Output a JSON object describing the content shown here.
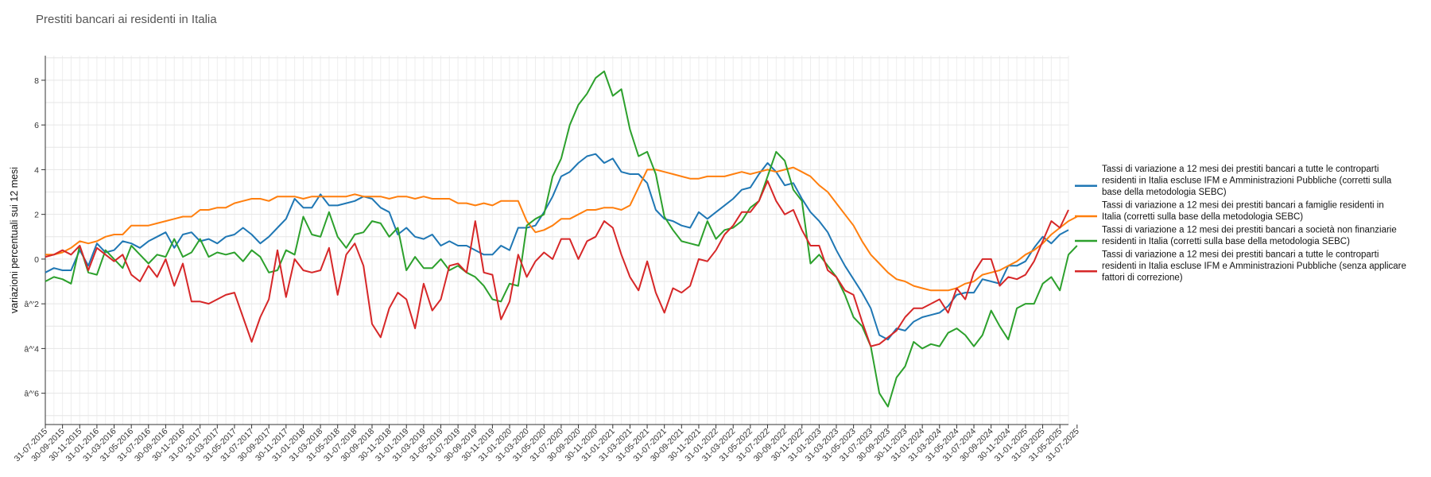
{
  "title": "Prestiti bancari ai residenti in Italia",
  "chart_data": {
    "type": "line",
    "title": "Prestiti bancari ai residenti in Italia",
    "xlabel": "",
    "ylabel": "variazioni percentuali sui 12 mesi",
    "ylim": [
      -7.4,
      9.1
    ],
    "yticks": [
      8,
      6,
      4,
      2,
      0,
      -2,
      -4,
      -6
    ],
    "ytick_labels": [
      "8",
      "6",
      "4",
      "2",
      "0",
      "â^'2",
      "â^'4",
      "â^'6"
    ],
    "grid": true,
    "legend_position": "right",
    "tick_labels": [
      "31-07-2015",
      "30-09-2015",
      "30-11-2015",
      "31-01-2016",
      "31-03-2016",
      "31-05-2016",
      "31-07-2016",
      "30-09-2016",
      "30-11-2016",
      "31-01-2017",
      "31-03-2017",
      "31-05-2017",
      "31-07-2017",
      "30-09-2017",
      "30-11-2017",
      "31-01-2018",
      "31-03-2018",
      "31-05-2018",
      "31-07-2018",
      "30-09-2018",
      "30-11-2018",
      "31-01-2019",
      "31-03-2019",
      "31-05-2019",
      "31-07-2019",
      "30-09-2019",
      "30-11-2019",
      "31-01-2020",
      "31-03-2020",
      "31-05-2020",
      "31-07-2020",
      "30-09-2020",
      "30-11-2020",
      "31-01-2021",
      "31-03-2021",
      "31-05-2021",
      "31-07-2021",
      "30-09-2021",
      "30-11-2021",
      "31-01-2022",
      "31-03-2022",
      "31-05-2022",
      "31-07-2022",
      "30-09-2022",
      "30-11-2022",
      "31-01-2023",
      "31-03-2023",
      "31-05-2023",
      "31-07-2023",
      "30-09-2023",
      "30-11-2023",
      "31-01-2024",
      "31-03-2024",
      "31-05-2024",
      "31-07-2024",
      "30-09-2024",
      "30-11-2024",
      "31-01-2025",
      "31-03-2025",
      "31-05-2025",
      "31-07-2025"
    ],
    "series": [
      {
        "name": "Tassi di variazione a 12 mesi dei prestiti bancari a tutte le controparti residenti in Italia escluse IFM e Amministrazioni Pubbliche (corretti sulla base della metodologia SEBC)",
        "legend_lines": [
          "Tassi di variazione a 12 mesi dei prestiti bancari a tutte le controparti",
          "residenti in Italia escluse IFM e Amministrazioni Pubbliche (corretti sulla",
          "base della metodologia SEBC)"
        ],
        "color": "#1f77b4",
        "values": [
          -0.6,
          -0.4,
          -0.5,
          -0.5,
          0.4,
          -0.3,
          0.7,
          0.3,
          0.4,
          0.8,
          0.7,
          0.5,
          0.8,
          1.0,
          1.2,
          0.5,
          1.1,
          1.2,
          0.8,
          0.9,
          0.7,
          1.0,
          1.1,
          1.4,
          1.1,
          0.7,
          1.0,
          1.4,
          1.8,
          2.7,
          2.3,
          2.3,
          2.9,
          2.4,
          2.4,
          2.5,
          2.6,
          2.8,
          2.7,
          2.3,
          2.1,
          1.1,
          1.4,
          1.0,
          0.9,
          1.1,
          0.6,
          0.8,
          0.6,
          0.6,
          0.4,
          0.2,
          0.2,
          0.6,
          0.4,
          1.4,
          1.4,
          1.5,
          2.1,
          2.8,
          3.7,
          3.9,
          4.3,
          4.6,
          4.7,
          4.3,
          4.5,
          3.9,
          3.8,
          3.8,
          3.4,
          2.2,
          1.8,
          1.7,
          1.5,
          1.4,
          2.1,
          1.8,
          2.1,
          2.4,
          2.7,
          3.1,
          3.2,
          3.8,
          4.3,
          3.9,
          3.3,
          3.4,
          2.7,
          2.1,
          1.7,
          1.2,
          0.4,
          -0.3,
          -0.9,
          -1.5,
          -2.2,
          -3.4,
          -3.6,
          -3.1,
          -3.2,
          -2.8,
          -2.6,
          -2.5,
          -2.4,
          -2.1,
          -1.6,
          -1.5,
          -1.5,
          -0.9,
          -1.0,
          -1.1,
          -0.3,
          -0.3,
          -0.1,
          0.5,
          1.0,
          0.7,
          1.1,
          1.3
        ]
      },
      {
        "name": "Tassi di variazione a 12 mesi dei prestiti bancari a famiglie residenti in Italia (corretti sulla base della metodologia SEBC)",
        "legend_lines": [
          "Tassi di variazione a 12 mesi dei prestiti bancari a famiglie residenti in",
          "Italia (corretti sulla base della metodologia SEBC)"
        ],
        "color": "#ff7f0e",
        "values": [
          0.2,
          0.2,
          0.3,
          0.5,
          0.8,
          0.7,
          0.8,
          1.0,
          1.1,
          1.1,
          1.5,
          1.5,
          1.5,
          1.6,
          1.7,
          1.8,
          1.9,
          1.9,
          2.2,
          2.2,
          2.3,
          2.3,
          2.5,
          2.6,
          2.7,
          2.7,
          2.6,
          2.8,
          2.8,
          2.8,
          2.7,
          2.8,
          2.8,
          2.8,
          2.8,
          2.8,
          2.9,
          2.8,
          2.8,
          2.8,
          2.7,
          2.8,
          2.8,
          2.7,
          2.8,
          2.7,
          2.7,
          2.7,
          2.5,
          2.5,
          2.4,
          2.5,
          2.4,
          2.6,
          2.6,
          2.6,
          1.7,
          1.2,
          1.3,
          1.5,
          1.8,
          1.8,
          2.0,
          2.2,
          2.2,
          2.3,
          2.3,
          2.2,
          2.4,
          3.2,
          4.0,
          4.0,
          3.9,
          3.8,
          3.7,
          3.6,
          3.6,
          3.7,
          3.7,
          3.7,
          3.8,
          3.9,
          3.8,
          3.9,
          4.0,
          3.9,
          4.0,
          4.1,
          3.9,
          3.7,
          3.3,
          3.0,
          2.5,
          2.0,
          1.5,
          0.8,
          0.2,
          -0.2,
          -0.6,
          -0.9,
          -1.0,
          -1.2,
          -1.3,
          -1.4,
          -1.4,
          -1.4,
          -1.3,
          -1.1,
          -1.0,
          -0.7,
          -0.6,
          -0.5,
          -0.3,
          -0.1,
          0.2,
          0.4,
          0.7,
          1.1,
          1.4,
          1.7,
          1.9
        ]
      },
      {
        "name": "Tassi di variazione a 12 mesi dei prestiti bancari a società non finanziarie residenti in Italia (corretti sulla base della metodologia SEBC)",
        "legend_lines": [
          "Tassi di variazione a 12 mesi dei prestiti bancari a società non finanziarie",
          "residenti in Italia (corretti sulla base della metodologia SEBC)"
        ],
        "color": "#2ca02c",
        "values": [
          -1.0,
          -0.8,
          -0.9,
          -1.1,
          0.6,
          -0.6,
          -0.7,
          0.4,
          0.0,
          -0.4,
          0.6,
          0.2,
          -0.2,
          0.2,
          0.1,
          0.9,
          0.1,
          0.3,
          0.9,
          0.1,
          0.3,
          0.2,
          0.3,
          -0.1,
          0.4,
          0.1,
          -0.6,
          -0.5,
          0.4,
          0.2,
          1.9,
          1.1,
          1.0,
          2.1,
          1.0,
          0.5,
          1.1,
          1.2,
          1.7,
          1.6,
          1.0,
          1.4,
          -0.5,
          0.1,
          -0.4,
          -0.4,
          0.0,
          -0.5,
          -0.3,
          -0.6,
          -0.8,
          -1.2,
          -1.8,
          -1.9,
          -1.1,
          -1.2,
          1.5,
          1.8,
          2.0,
          3.7,
          4.5,
          6.0,
          6.9,
          7.4,
          8.1,
          8.4,
          7.3,
          7.6,
          5.8,
          4.6,
          4.8,
          3.8,
          1.9,
          1.3,
          0.8,
          0.7,
          0.6,
          1.7,
          0.9,
          1.3,
          1.4,
          1.7,
          2.3,
          2.6,
          3.7,
          4.8,
          4.4,
          3.1,
          2.6,
          -0.2,
          0.2,
          -0.3,
          -0.8,
          -1.6,
          -2.6,
          -3.0,
          -3.9,
          -6.0,
          -6.6,
          -5.3,
          -4.8,
          -3.7,
          -4.0,
          -3.8,
          -3.9,
          -3.3,
          -3.1,
          -3.4,
          -3.9,
          -3.4,
          -2.3,
          -3.0,
          -3.6,
          -2.2,
          -2.0,
          -2.0,
          -1.1,
          -0.8,
          -1.4,
          0.2,
          0.6
        ]
      },
      {
        "name": "Tassi di variazione a 12 mesi dei prestiti bancari a tutte le controparti residenti in Italia escluse IFM e Amministrazioni Pubbliche (senza applicare fattori di correzione)",
        "legend_lines": [
          "Tassi di variazione a 12 mesi dei prestiti bancari a tutte le controparti",
          "residenti in Italia escluse IFM e Amministrazioni Pubbliche (senza applicare",
          "fattori di correzione)"
        ],
        "color": "#d62728",
        "values": [
          0.1,
          0.2,
          0.4,
          0.2,
          0.6,
          -0.5,
          0.5,
          0.2,
          -0.1,
          0.2,
          -0.7,
          -1.0,
          -0.3,
          -0.8,
          0.0,
          -1.2,
          -0.2,
          -1.9,
          -1.9,
          -2.0,
          -1.8,
          -1.6,
          -1.5,
          -2.6,
          -3.7,
          -2.6,
          -1.8,
          0.4,
          -1.7,
          0.0,
          -0.5,
          -0.6,
          -0.5,
          0.5,
          -1.6,
          0.2,
          0.7,
          -0.3,
          -2.9,
          -3.5,
          -2.2,
          -1.5,
          -1.8,
          -3.1,
          -1.1,
          -2.3,
          -1.8,
          -0.3,
          -0.2,
          -0.6,
          1.7,
          -0.6,
          -0.7,
          -2.7,
          -1.9,
          0.2,
          -0.8,
          -0.1,
          0.3,
          0.0,
          0.9,
          0.9,
          0.0,
          0.8,
          1.0,
          1.7,
          1.4,
          0.2,
          -0.8,
          -1.4,
          -0.1,
          -1.5,
          -2.4,
          -1.3,
          -1.5,
          -1.2,
          0.0,
          -0.1,
          0.4,
          1.1,
          1.5,
          2.1,
          2.1,
          2.6,
          3.5,
          2.6,
          2.0,
          2.2,
          1.3,
          0.6,
          0.6,
          -0.5,
          -0.8,
          -1.4,
          -1.6,
          -2.8,
          -3.9,
          -3.8,
          -3.5,
          -3.2,
          -2.6,
          -2.2,
          -2.2,
          -2.0,
          -1.8,
          -2.4,
          -1.3,
          -1.8,
          -0.6,
          0.0,
          0.0,
          -1.2,
          -0.8,
          -0.9,
          -0.7,
          -0.1,
          0.8,
          1.7,
          1.4,
          2.2
        ]
      }
    ]
  }
}
